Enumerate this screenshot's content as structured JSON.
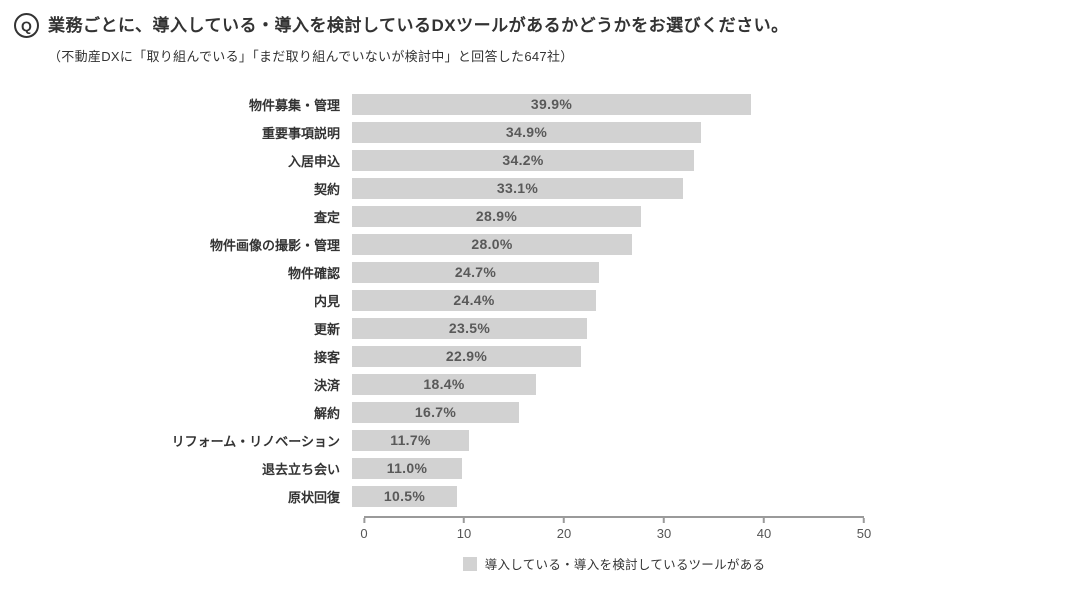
{
  "header": {
    "q_badge": "Q",
    "title": "業務ごとに、導入している・導入を検討しているDXツールがあるかどうかをお選びください。",
    "subtitle": "（不動産DXに「取り組んでいる」「まだ取り組んでいないが検討中」と回答した647社）"
  },
  "chart_data": {
    "type": "bar",
    "orientation": "horizontal",
    "title": "業務ごとに、導入している・導入を検討しているDXツールがあるかどうかをお選びください。",
    "subtitle": "（不動産DXに「取り組んでいる」「まだ取り組んでいないが検討中」と回答した647社）",
    "categories": [
      "物件募集・管理",
      "重要事項説明",
      "入居申込",
      "契約",
      "査定",
      "物件画像の撮影・管理",
      "物件確認",
      "内見",
      "更新",
      "接客",
      "決済",
      "解約",
      "リフォーム・リノベーション",
      "退去立ち会い",
      "原状回復"
    ],
    "values": [
      39.9,
      34.9,
      34.2,
      33.1,
      28.9,
      28.0,
      24.7,
      24.4,
      23.5,
      22.9,
      18.4,
      16.7,
      11.7,
      11.0,
      10.5
    ],
    "value_labels": [
      "39.9%",
      "34.9%",
      "34.2%",
      "33.1%",
      "28.9%",
      "28.0%",
      "24.7%",
      "24.4%",
      "23.5%",
      "22.9%",
      "18.4%",
      "16.7%",
      "11.7%",
      "11.0%",
      "10.5%"
    ],
    "xlabel": "",
    "ylabel": "",
    "xlim": [
      0,
      50
    ],
    "x_ticks": [
      "0",
      "10",
      "20",
      "30",
      "40",
      "50"
    ],
    "grid": false,
    "legend": "導入している・導入を検討しているツールがある",
    "legend_position": "bottom",
    "bar_color": "#d2d2d2",
    "value_label_color": "#595959"
  }
}
